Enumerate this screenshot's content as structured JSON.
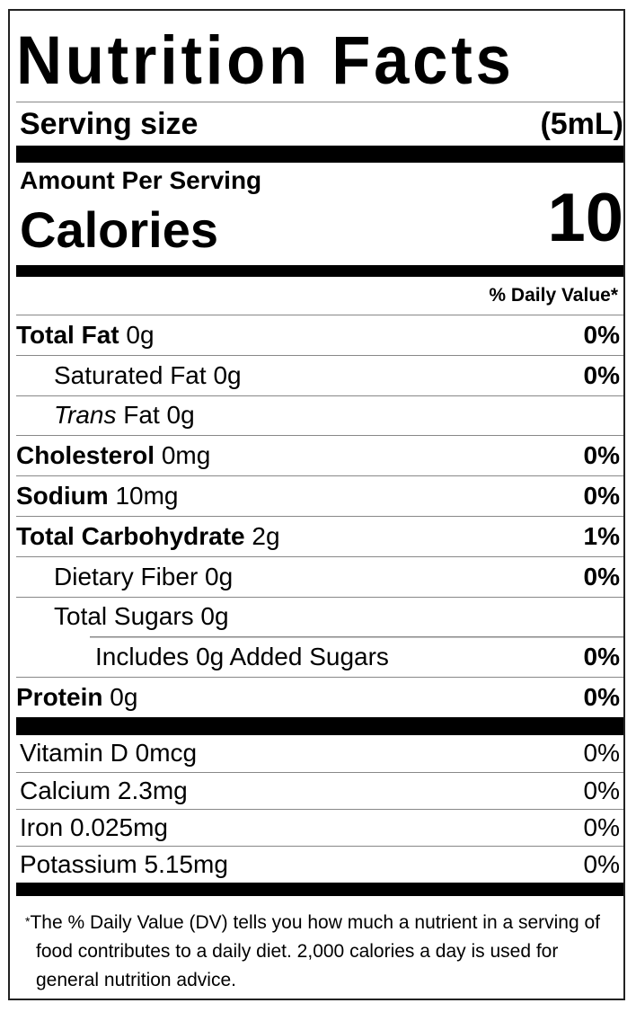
{
  "title": "Nutrition Facts",
  "serving": {
    "label": "Serving size",
    "value": "(5mL)"
  },
  "amount_per_serving": "Amount Per Serving",
  "calories": {
    "label": "Calories",
    "value": "10"
  },
  "daily_value_header": "% Daily Value*",
  "nutrients": [
    {
      "name": "Total Fat",
      "amount": "0g",
      "dv": "0%",
      "bold": true,
      "indent": 0
    },
    {
      "name": "Saturated Fat",
      "amount": "0g",
      "dv": "0%",
      "bold": false,
      "indent": 1
    },
    {
      "name": "Trans",
      "name_suffix": "Fat",
      "amount": "0g",
      "dv": "",
      "bold": false,
      "indent": 1
    },
    {
      "name": "Cholesterol",
      "amount": "0mg",
      "dv": "0%",
      "bold": true,
      "indent": 0
    },
    {
      "name": "Sodium",
      "amount": "10mg",
      "dv": "0%",
      "bold": true,
      "indent": 0
    },
    {
      "name": "Total Carbohydrate",
      "amount": "2g",
      "dv": "1%",
      "bold": true,
      "indent": 0
    },
    {
      "name": "Dietary Fiber",
      "amount": "0g",
      "dv": "0%",
      "bold": false,
      "indent": 1
    },
    {
      "name": "Total Sugars",
      "amount": "0g",
      "dv": "",
      "bold": false,
      "indent": 1
    },
    {
      "name": "Includes 0g Added Sugars",
      "amount": "",
      "dv": "0%",
      "bold": false,
      "indent": 2
    },
    {
      "name": "Protein",
      "amount": "0g",
      "dv": "0%",
      "bold": true,
      "indent": 0
    }
  ],
  "minerals": [
    {
      "text": "Vitamin D 0mcg",
      "dv": "0%"
    },
    {
      "text": "Calcium 2.3mg",
      "dv": "0%"
    },
    {
      "text": "Iron 0.025mg",
      "dv": "0%"
    },
    {
      "text": "Potassium 5.15mg",
      "dv": "0%"
    }
  ],
  "footnote": {
    "star": "*",
    "text": "The % Daily Value (DV) tells you how much a nutrient in a serving of food contributes to a daily diet. 2,000 calories a day is used for general nutrition advice."
  }
}
